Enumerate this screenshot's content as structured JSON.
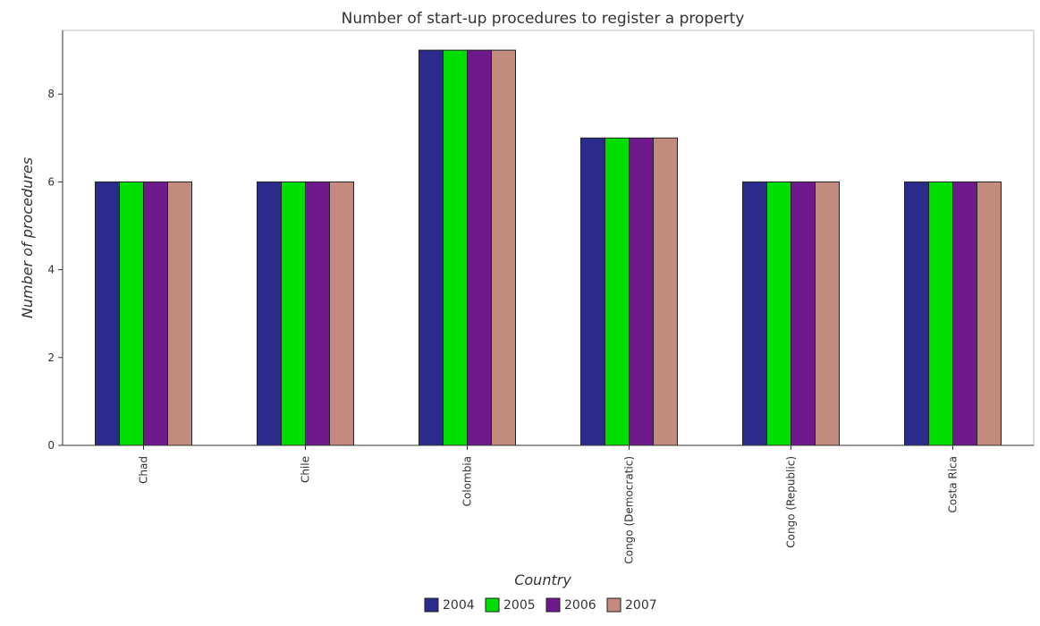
{
  "chart_data": {
    "type": "bar",
    "title": "Number of start-up procedures to register a property",
    "xlabel": "Country",
    "ylabel": "Number of procedures",
    "categories": [
      "Chad",
      "Chile",
      "Colombia",
      "Congo (Democratic)",
      "Congo (Republic)",
      "Costa Rica"
    ],
    "series": [
      {
        "name": "2004",
        "color": "#2b2b8c",
        "values": [
          6,
          6,
          9,
          7,
          6,
          6
        ]
      },
      {
        "name": "2005",
        "color": "#00dd00",
        "values": [
          6,
          6,
          9,
          7,
          6,
          6
        ]
      },
      {
        "name": "2006",
        "color": "#6e1a8c",
        "values": [
          6,
          6,
          9,
          7,
          6,
          6
        ]
      },
      {
        "name": "2007",
        "color": "#c28b7e",
        "values": [
          6,
          6,
          9,
          7,
          6,
          6
        ]
      }
    ],
    "yticks": [
      0,
      2,
      4,
      6,
      8
    ],
    "ylim": [
      0,
      9.45
    ],
    "grid": false,
    "legend": "bottom-center"
  }
}
